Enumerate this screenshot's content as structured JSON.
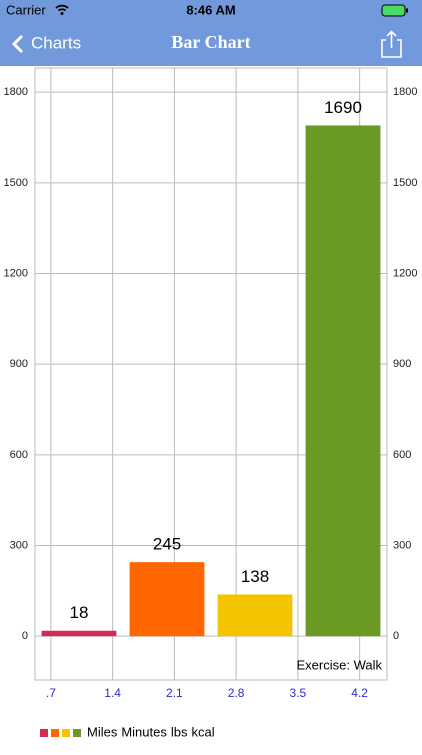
{
  "status_bar": {
    "carrier": "Carrier",
    "time": "8:46 AM"
  },
  "nav_bar": {
    "back": "Charts",
    "title": "Bar Chart"
  },
  "chart_data": {
    "type": "bar",
    "annotation": "Exercise: Walk",
    "series": [
      {
        "name": "Miles",
        "color": "#d32b52",
        "values": [
          18
        ]
      },
      {
        "name": "Minutes",
        "color": "#ff6600",
        "values": [
          245
        ]
      },
      {
        "name": "lbs",
        "color": "#f5c400",
        "values": [
          138
        ]
      },
      {
        "name": "kcal",
        "color": "#6b9a24",
        "values": [
          1690
        ]
      }
    ],
    "ylim": [
      -145,
      1880
    ],
    "yticks": [
      0,
      300,
      600,
      900,
      1200,
      1500,
      1800
    ],
    "y2lim": [
      -145,
      1880
    ],
    "y2ticks": [
      0,
      300,
      600,
      900,
      1200,
      1500,
      1800
    ],
    "xlim": [
      0.52,
      4.51
    ],
    "xticks": [
      {
        "value": 0.7,
        "label": ".7"
      },
      1.4,
      2.1,
      2.8,
      3.5,
      4.2
    ],
    "grid": true
  }
}
